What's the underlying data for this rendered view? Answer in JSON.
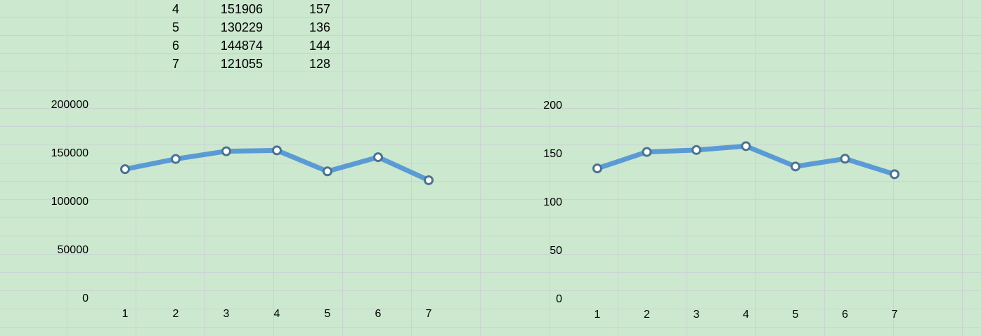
{
  "table": {
    "rows": [
      {
        "idx": "4",
        "a": "151906",
        "b": "157"
      },
      {
        "idx": "5",
        "a": "130229",
        "b": "136"
      },
      {
        "idx": "6",
        "a": "144874",
        "b": "144"
      },
      {
        "idx": "7",
        "a": "121055",
        "b": "128"
      }
    ]
  },
  "chart_data": [
    {
      "type": "line",
      "title": "",
      "xlabel": "",
      "ylabel": "",
      "x": [
        1,
        2,
        3,
        4,
        5,
        6,
        7
      ],
      "series": [
        {
          "values": [
            132500,
            143000,
            151000,
            151906,
            130229,
            144874,
            121055
          ]
        }
      ],
      "ylim": [
        0,
        200000
      ],
      "yticks": [
        0,
        50000,
        100000,
        150000,
        200000
      ],
      "grid": false,
      "line_color": "#5b9bd5",
      "marker_edge_color": "#4a7390",
      "marker_fill_color": "#ffffff"
    },
    {
      "type": "line",
      "title": "",
      "xlabel": "",
      "ylabel": "",
      "x": [
        1,
        2,
        3,
        4,
        5,
        6,
        7
      ],
      "series": [
        {
          "values": [
            134,
            151,
            153,
            157,
            136,
            144,
            128
          ]
        }
      ],
      "ylim": [
        0,
        200
      ],
      "yticks": [
        0,
        50,
        100,
        150,
        200
      ],
      "grid": false,
      "line_color": "#5b9bd5",
      "marker_edge_color": "#4a7390",
      "marker_fill_color": "#ffffff"
    }
  ]
}
